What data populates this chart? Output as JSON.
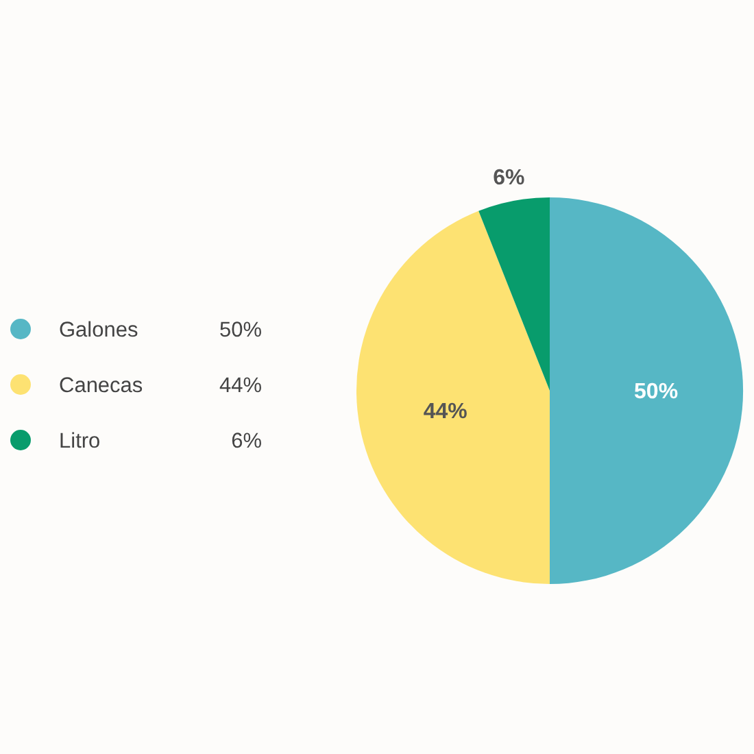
{
  "chart_data": {
    "type": "pie",
    "categories": [
      "Galones",
      "Canecas",
      "Litro"
    ],
    "values": [
      50,
      44,
      6
    ],
    "colors": [
      "#56b7c5",
      "#fde272",
      "#089c6c"
    ],
    "value_labels": [
      "50%",
      "44%",
      "6%"
    ],
    "legend": "left"
  }
}
